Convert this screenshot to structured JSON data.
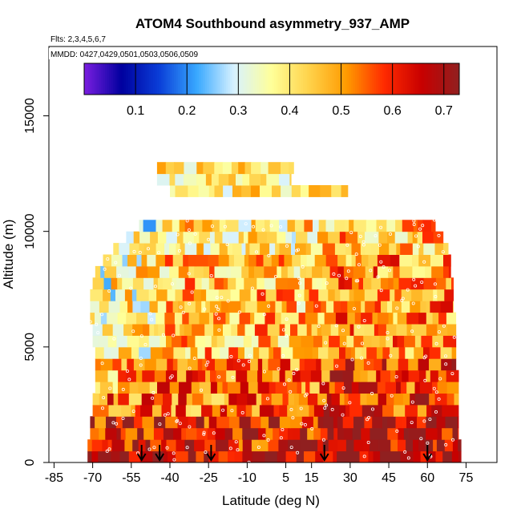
{
  "chart_data": {
    "type": "heatmap",
    "title": "ATOM4 Southbound asymmetry_937_AMP",
    "subtitle_flights": "Flts: 2,3,4,5,6,7",
    "subtitle_dates": "MMDD: 0427,0429,0501,0503,0506,0509",
    "xlabel": "Latitude (deg N)",
    "ylabel": "Altitude (m)",
    "xlim": [
      -87,
      87
    ],
    "ylim": [
      0,
      18000
    ],
    "x_ticks": [
      -85,
      -70,
      -55,
      -40,
      -25,
      -10,
      5,
      15,
      30,
      45,
      60,
      75
    ],
    "y_ticks": [
      0,
      5000,
      10000,
      15000
    ],
    "colorbar": {
      "range": [
        0.0,
        0.73
      ],
      "ticks": [
        0.1,
        0.2,
        0.3,
        0.4,
        0.5,
        0.6,
        0.7
      ],
      "colors": [
        "#7b1ee0",
        "#00009e",
        "#0a3ed8",
        "#38a8ff",
        "#d8f2ff",
        "#ffff99",
        "#ffd24a",
        "#ff9a00",
        "#ff2a00",
        "#c80000",
        "#902020"
      ]
    },
    "coverage": {
      "lat_min": [
        -72,
        -72,
        -71,
        -71,
        -70,
        -70,
        -69,
        -69,
        -69,
        -69,
        -70,
        -70,
        -71,
        -71,
        -71,
        -70,
        -69,
        -66,
        -62,
        -57,
        -52
      ],
      "lat_max": [
        73,
        73,
        72,
        72,
        72,
        72,
        72,
        72,
        71,
        71,
        71,
        71,
        71,
        70,
        70,
        70,
        69,
        69,
        68,
        66,
        63
      ],
      "alt_band_m": 500,
      "top_segments": [
        {
          "alt": 11500,
          "lat_min": -40,
          "lat_max": 29
        },
        {
          "alt": 12000,
          "lat_min": -45,
          "lat_max": 7
        },
        {
          "alt": 12500,
          "lat_min": -45,
          "lat_max": 8
        }
      ]
    },
    "regional_values": [
      {
        "alt_max": 2000,
        "mid_lat_min": -80,
        "mid_lat_max": 80,
        "value": 0.62
      },
      {
        "alt_max": 4500,
        "value": 0.52
      },
      {
        "alt_max": 9000,
        "value": 0.45
      },
      {
        "alt_max": 12600,
        "value": 0.4
      }
    ],
    "flight_markers_lat": [
      -51,
      -44,
      -24,
      20,
      60
    ]
  }
}
